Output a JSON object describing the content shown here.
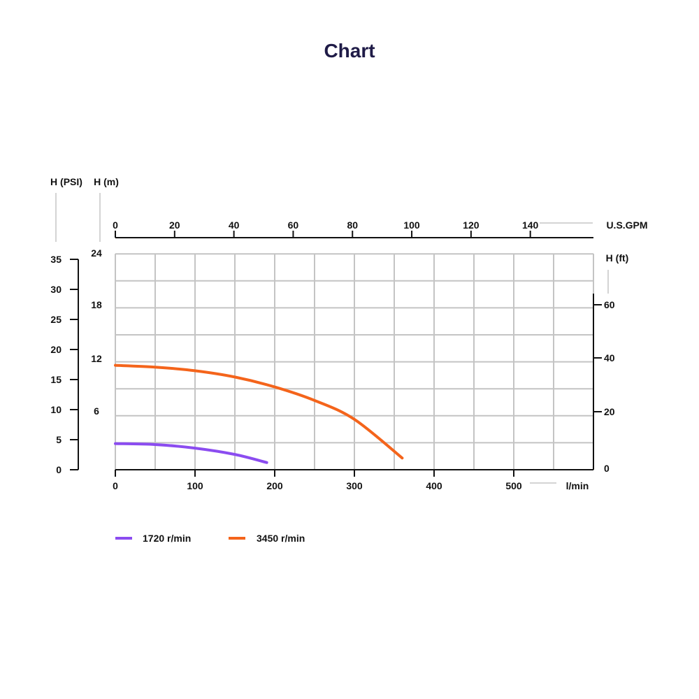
{
  "chart_data": {
    "type": "line",
    "title": "Chart",
    "x_bottom": {
      "label": "l/min",
      "range": [
        0,
        600
      ],
      "ticks": [
        "0",
        "100",
        "200",
        "300",
        "400",
        "500"
      ]
    },
    "x_top": {
      "label": "U.S.GPM",
      "ticks": [
        "0",
        "20",
        "40",
        "60",
        "80",
        "100",
        "120",
        "140"
      ]
    },
    "y_left_psi": {
      "label": "H (PSI)",
      "ticks": [
        "0",
        "5",
        "10",
        "15",
        "20",
        "25",
        "30",
        "35"
      ]
    },
    "y_left_m": {
      "label": "H (m)",
      "range": [
        0,
        24
      ],
      "ticks": [
        "6",
        "12",
        "18",
        "24"
      ]
    },
    "y_right_ft": {
      "label": "H (ft)",
      "ticks": [
        "0",
        "20",
        "40",
        "60"
      ]
    },
    "grid": true,
    "legend_position": "bottom-left",
    "series": [
      {
        "name": "1720 r/min",
        "color": "#8b4cf0",
        "x": [
          0,
          50,
          100,
          150,
          190
        ],
        "y": [
          2.9,
          2.8,
          2.4,
          1.7,
          0.8
        ]
      },
      {
        "name": "3450 r/min",
        "color": "#f4641b",
        "x": [
          0,
          50,
          100,
          150,
          200,
          250,
          300,
          360
        ],
        "y": [
          11.6,
          11.4,
          11.0,
          10.3,
          9.2,
          7.7,
          5.6,
          1.3
        ]
      }
    ]
  }
}
